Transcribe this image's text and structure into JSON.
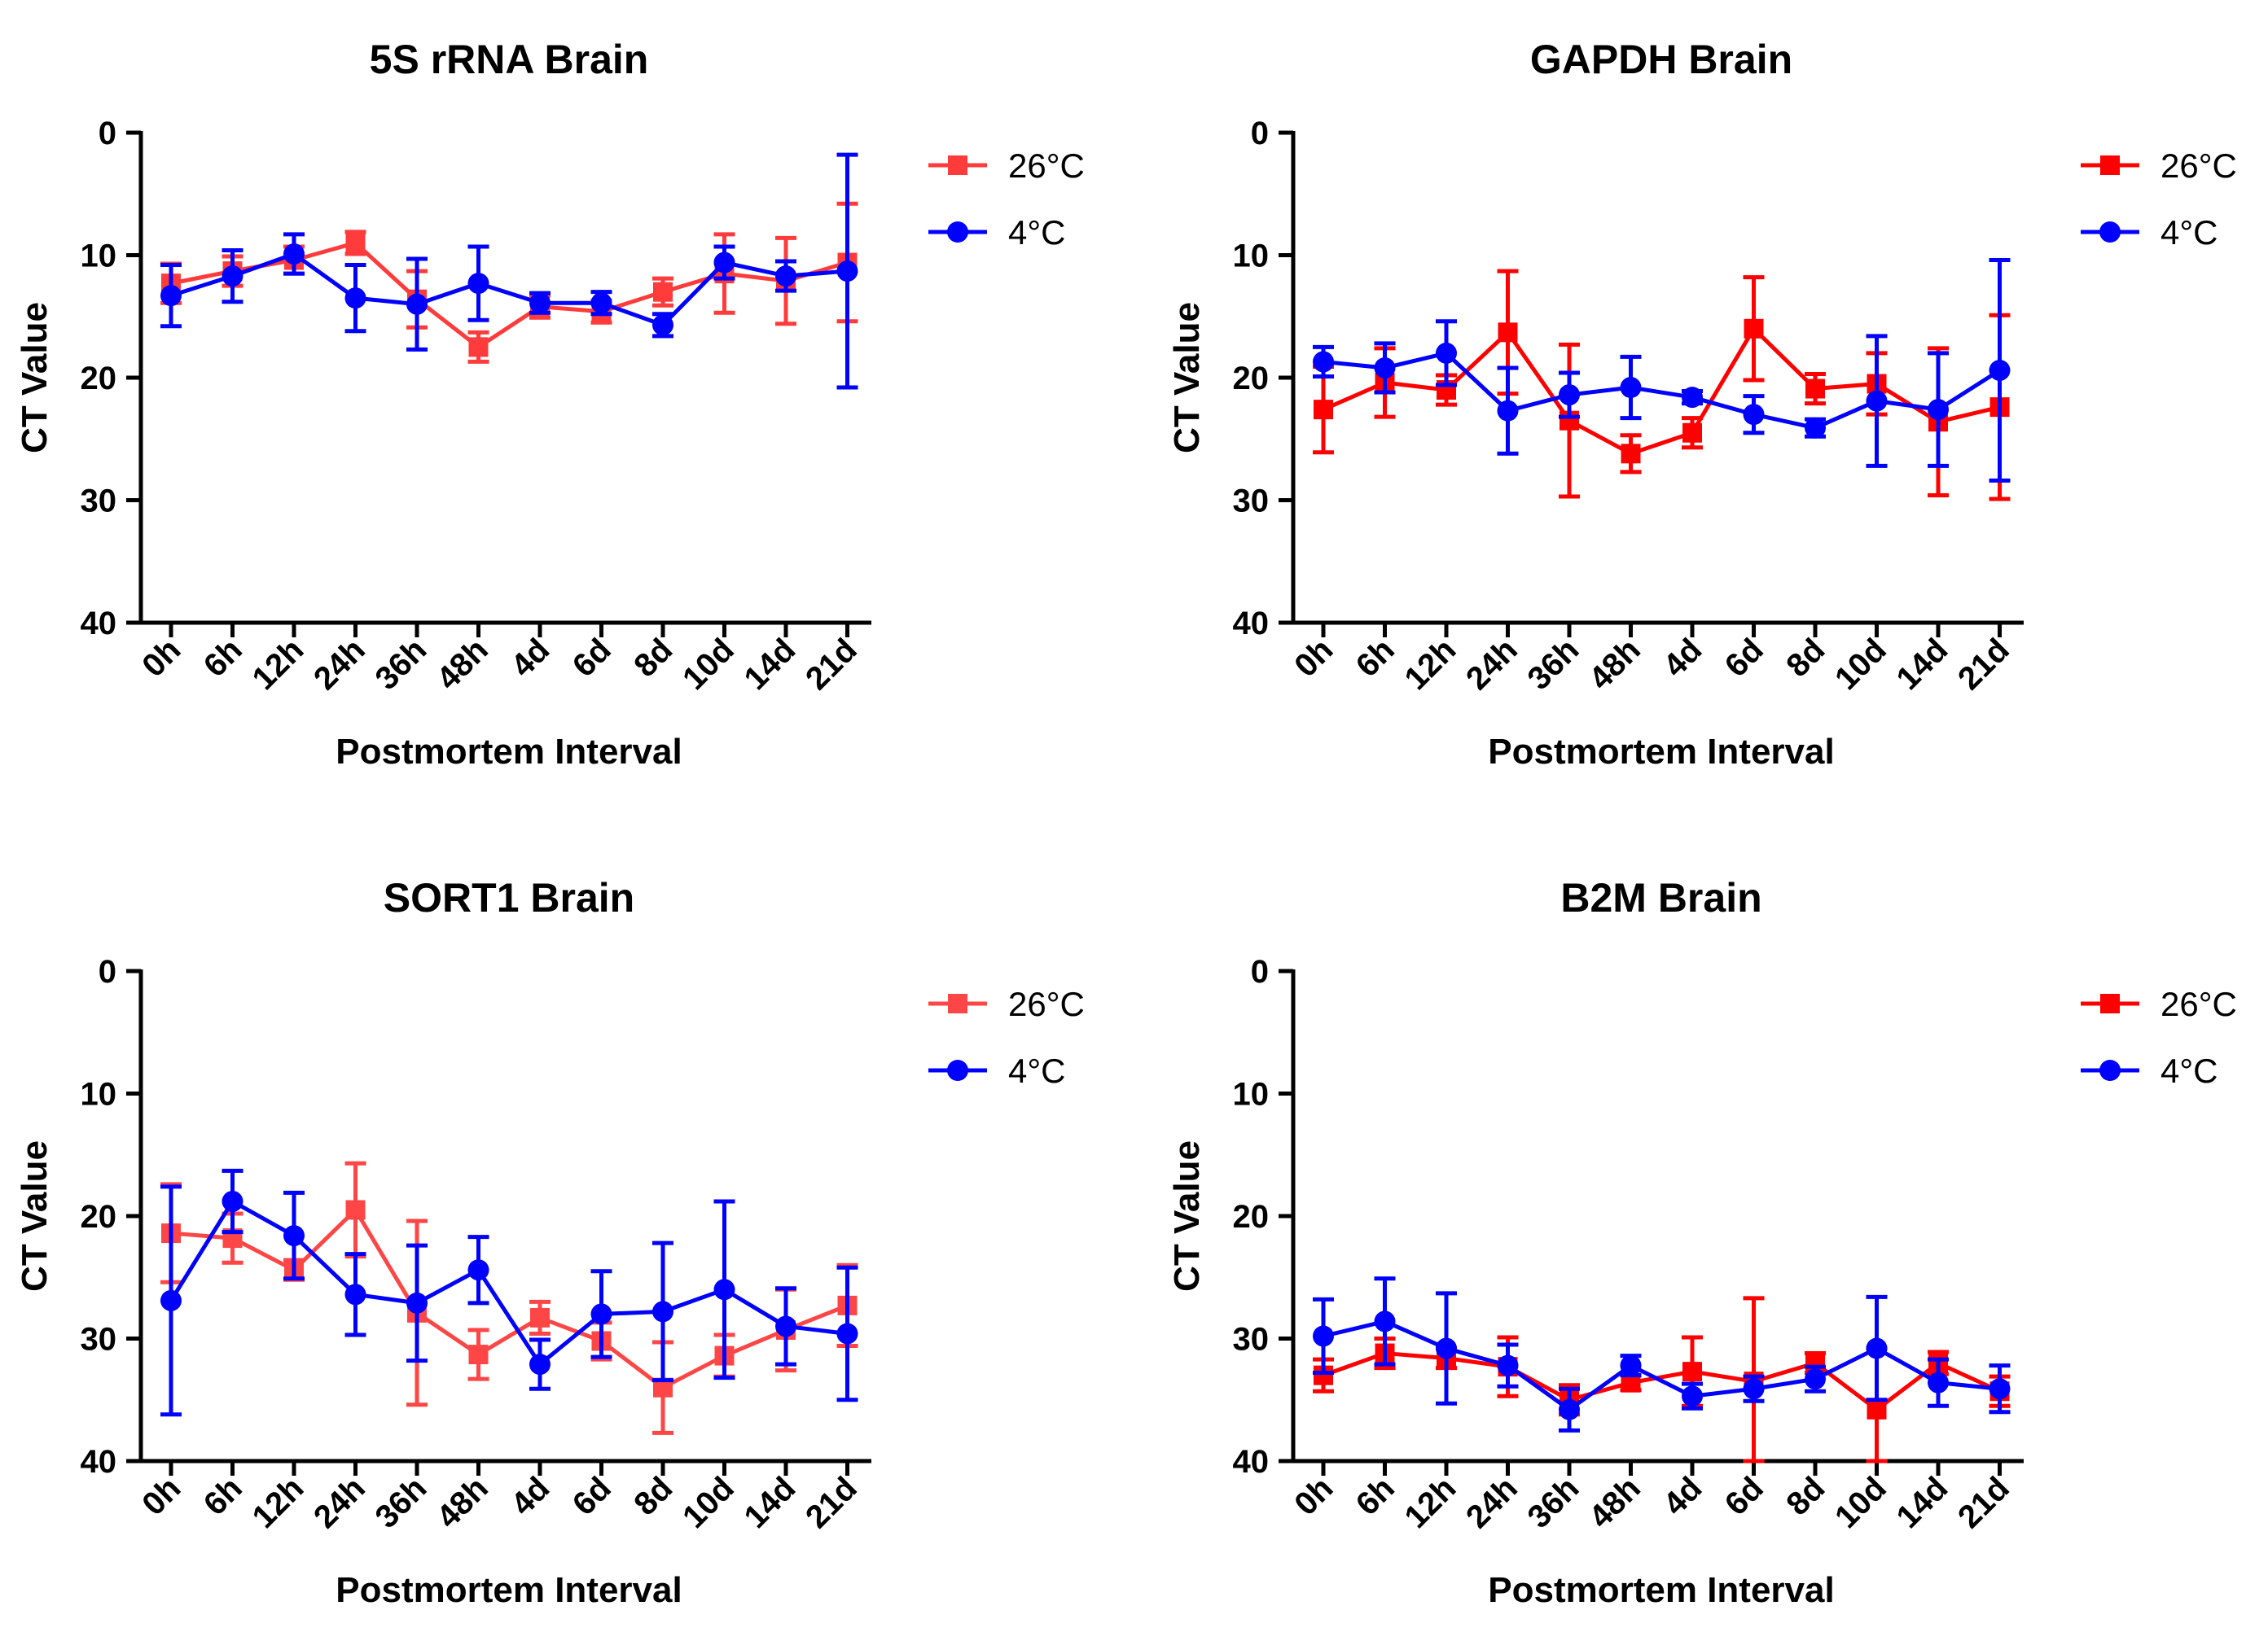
{
  "chart_data": [
    {
      "type": "line",
      "title": "5S rRNA Brain",
      "xlabel": "Postmortem Interval",
      "ylabel": "CT Value",
      "ylim": [
        40,
        0
      ],
      "yticks": [
        "0",
        "10",
        "20",
        "30",
        "40"
      ],
      "categories": [
        "0h",
        "6h",
        "12h",
        "24h",
        "36h",
        "48h",
        "4d",
        "6d",
        "8d",
        "10d",
        "14d",
        "21d"
      ],
      "legend": "top-right",
      "series": [
        {
          "name": "26°C",
          "color": "#ff3b3b",
          "marker": "square",
          "values": [
            12.3,
            11.3,
            10.4,
            9.0,
            13.6,
            17.5,
            14.2,
            14.6,
            13.0,
            11.5,
            12.1,
            10.6
          ],
          "errors": [
            1.6,
            1.2,
            1.1,
            0.9,
            2.3,
            1.2,
            0.9,
            0.9,
            1.1,
            3.2,
            3.5,
            4.8
          ]
        },
        {
          "name": "4°C",
          "color": "#0000ff",
          "marker": "circle",
          "values": [
            13.3,
            11.7,
            9.9,
            13.5,
            14.0,
            12.3,
            13.9,
            13.9,
            15.7,
            10.6,
            11.7,
            11.3
          ],
          "errors": [
            2.5,
            2.1,
            1.6,
            2.7,
            3.7,
            3.0,
            0.8,
            0.9,
            0.9,
            1.3,
            1.2,
            9.5
          ]
        }
      ]
    },
    {
      "type": "line",
      "title": "GAPDH Brain",
      "xlabel": "Postmortem Interval",
      "ylabel": "CT Value",
      "ylim": [
        40,
        0
      ],
      "yticks": [
        "0",
        "10",
        "20",
        "30",
        "40"
      ],
      "categories": [
        "0h",
        "6h",
        "12h",
        "24h",
        "36h",
        "48h",
        "4d",
        "6d",
        "8d",
        "10d",
        "14d",
        "21d"
      ],
      "legend": "top-right",
      "series": [
        {
          "name": "26°C",
          "color": "#ff0000",
          "marker": "square",
          "values": [
            22.6,
            20.4,
            21.0,
            16.3,
            23.5,
            26.2,
            24.5,
            16.0,
            20.9,
            20.5,
            23.6,
            22.4
          ],
          "errors": [
            3.5,
            2.8,
            1.2,
            5.0,
            6.2,
            1.5,
            1.2,
            4.2,
            1.2,
            2.5,
            6.0,
            7.5
          ]
        },
        {
          "name": "4°C",
          "color": "#0000ff",
          "marker": "circle",
          "values": [
            18.7,
            19.2,
            18.0,
            22.7,
            21.4,
            20.8,
            21.6,
            23.0,
            24.1,
            21.9,
            22.6,
            19.4
          ],
          "errors": [
            1.2,
            2.0,
            2.6,
            3.5,
            1.8,
            2.5,
            0.5,
            1.5,
            0.7,
            5.3,
            4.6,
            9.0
          ]
        }
      ]
    },
    {
      "type": "line",
      "title": "SORT1 Brain",
      "xlabel": "Postmortem Interval",
      "ylabel": "CT Value",
      "ylim": [
        40,
        0
      ],
      "yticks": [
        "0",
        "10",
        "20",
        "30",
        "40"
      ],
      "categories": [
        "0h",
        "6h",
        "12h",
        "24h",
        "36h",
        "48h",
        "4d",
        "6d",
        "8d",
        "10d",
        "14d",
        "21d"
      ],
      "legend": "top-right",
      "series": [
        {
          "name": "26°C",
          "color": "#ff4646",
          "marker": "square",
          "values": [
            21.4,
            21.8,
            24.4,
            19.5,
            27.9,
            31.3,
            28.3,
            30.2,
            34.0,
            31.4,
            29.3,
            27.3
          ],
          "errors": [
            4.0,
            2.0,
            0.8,
            3.8,
            7.5,
            2.0,
            1.3,
            1.5,
            3.7,
            1.7,
            3.3,
            3.3
          ]
        },
        {
          "name": "4°C",
          "color": "#0000ff",
          "marker": "circle",
          "values": [
            26.9,
            18.8,
            21.6,
            26.4,
            27.1,
            24.4,
            32.1,
            28.0,
            27.8,
            26.0,
            29.0,
            29.6
          ],
          "errors": [
            9.3,
            2.5,
            3.5,
            3.3,
            4.7,
            2.7,
            2.0,
            3.5,
            5.6,
            7.2,
            3.1,
            5.4
          ]
        }
      ]
    },
    {
      "type": "line",
      "title": "B2M Brain",
      "xlabel": "Postmortem Interval",
      "ylabel": "CT Value",
      "ylim": [
        40,
        0
      ],
      "yticks": [
        "0",
        "10",
        "20",
        "30",
        "40"
      ],
      "categories": [
        "0h",
        "6h",
        "12h",
        "24h",
        "36h",
        "48h",
        "4d",
        "6d",
        "8d",
        "10d",
        "14d",
        "21d"
      ],
      "legend": "top-right",
      "series": [
        {
          "name": "26°C",
          "color": "#ff0000",
          "marker": "square",
          "values": [
            33.0,
            31.2,
            31.6,
            32.3,
            35.0,
            33.6,
            32.7,
            33.5,
            32.0,
            35.8,
            32.0,
            34.3
          ],
          "errors": [
            1.3,
            1.2,
            0.8,
            2.4,
            1.2,
            0.6,
            2.8,
            6.8,
            0.8,
            5.0,
            0.9,
            1.2
          ]
        },
        {
          "name": "4°C",
          "color": "#0000ff",
          "marker": "circle",
          "values": [
            29.8,
            28.6,
            30.8,
            32.2,
            35.8,
            32.2,
            34.7,
            34.1,
            33.3,
            30.8,
            33.6,
            34.1
          ],
          "errors": [
            3.0,
            3.5,
            4.5,
            1.7,
            1.7,
            0.8,
            1.0,
            1.0,
            1.0,
            4.2,
            1.9,
            1.9
          ]
        }
      ]
    }
  ]
}
